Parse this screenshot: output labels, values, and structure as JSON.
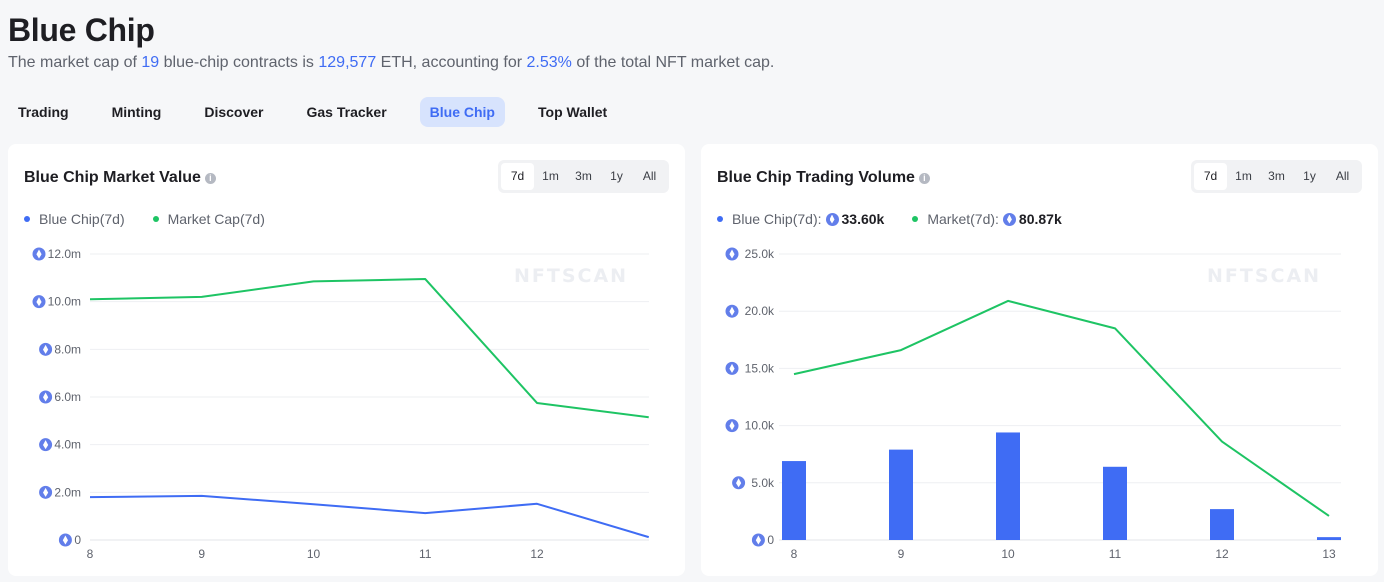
{
  "header": {
    "title": "Blue Chip",
    "subtitle": {
      "p1": "The market cap of ",
      "count": "19",
      "p2": " blue-chip contracts is ",
      "value": "129,577",
      "p3": " ETH, accounting for ",
      "percent": "2.53%",
      "p4": " of the total NFT market cap."
    }
  },
  "tabs": [
    "Trading",
    "Minting",
    "Discover",
    "Gas Tracker",
    "Blue Chip",
    "Top Wallet"
  ],
  "active_tab": "Blue Chip",
  "colors": {
    "accent": "#3f6cf4",
    "blue_series": "#3f6cf4",
    "green_series": "#1ec464",
    "eth": "#627eea"
  },
  "watermark": "NFTSCAN",
  "ranges": [
    "7d",
    "1m",
    "3m",
    "1y",
    "All"
  ],
  "market_value": {
    "title": "Blue Chip Market Value",
    "range_selected": "7d",
    "legend": {
      "blue": "Blue Chip(7d)",
      "green": "Market Cap(7d)"
    }
  },
  "trading_volume": {
    "title": "Blue Chip Trading Volume",
    "range_selected": "7d",
    "legend": {
      "blue": "Blue Chip(7d):",
      "blue_value": "33.60k",
      "green": "Market(7d):",
      "green_value": "80.87k"
    }
  },
  "chart_data": [
    {
      "type": "line",
      "title": "Blue Chip Market Value",
      "x": [
        8,
        9,
        10,
        11,
        12,
        13
      ],
      "x_tick_labels": [
        "8",
        "9",
        "10",
        "11",
        "12"
      ],
      "y_tick_labels": [
        "0",
        "2.0m",
        "4.0m",
        "6.0m",
        "8.0m",
        "10.0m",
        "12.0m"
      ],
      "ylim": [
        0,
        12000000
      ],
      "series": [
        {
          "name": "Blue Chip(7d)",
          "values": [
            1800000,
            1850000,
            1500000,
            1130000,
            1520000,
            120000
          ]
        },
        {
          "name": "Market Cap(7d)",
          "values": [
            10100000,
            10200000,
            10850000,
            10950000,
            5750000,
            5150000
          ]
        }
      ],
      "legend_position": "top-left",
      "grid": true
    },
    {
      "type": "bar",
      "title": "Blue Chip Trading Volume",
      "x": [
        8,
        9,
        10,
        11,
        12,
        13
      ],
      "x_tick_labels": [
        "8",
        "9",
        "10",
        "11",
        "12",
        "13"
      ],
      "y_tick_labels": [
        "0",
        "5.0k",
        "10.0k",
        "15.0k",
        "20.0k",
        "25.0k"
      ],
      "ylim": [
        0,
        25000
      ],
      "series": [
        {
          "name": "Blue Chip(7d)",
          "kind": "bar",
          "values": [
            6900,
            7900,
            9400,
            6400,
            2700,
            250
          ]
        },
        {
          "name": "Market(7d)",
          "kind": "line",
          "values": [
            14500,
            16600,
            20900,
            18500,
            8600,
            2100
          ]
        }
      ],
      "legend_position": "top-left",
      "grid": true
    }
  ]
}
